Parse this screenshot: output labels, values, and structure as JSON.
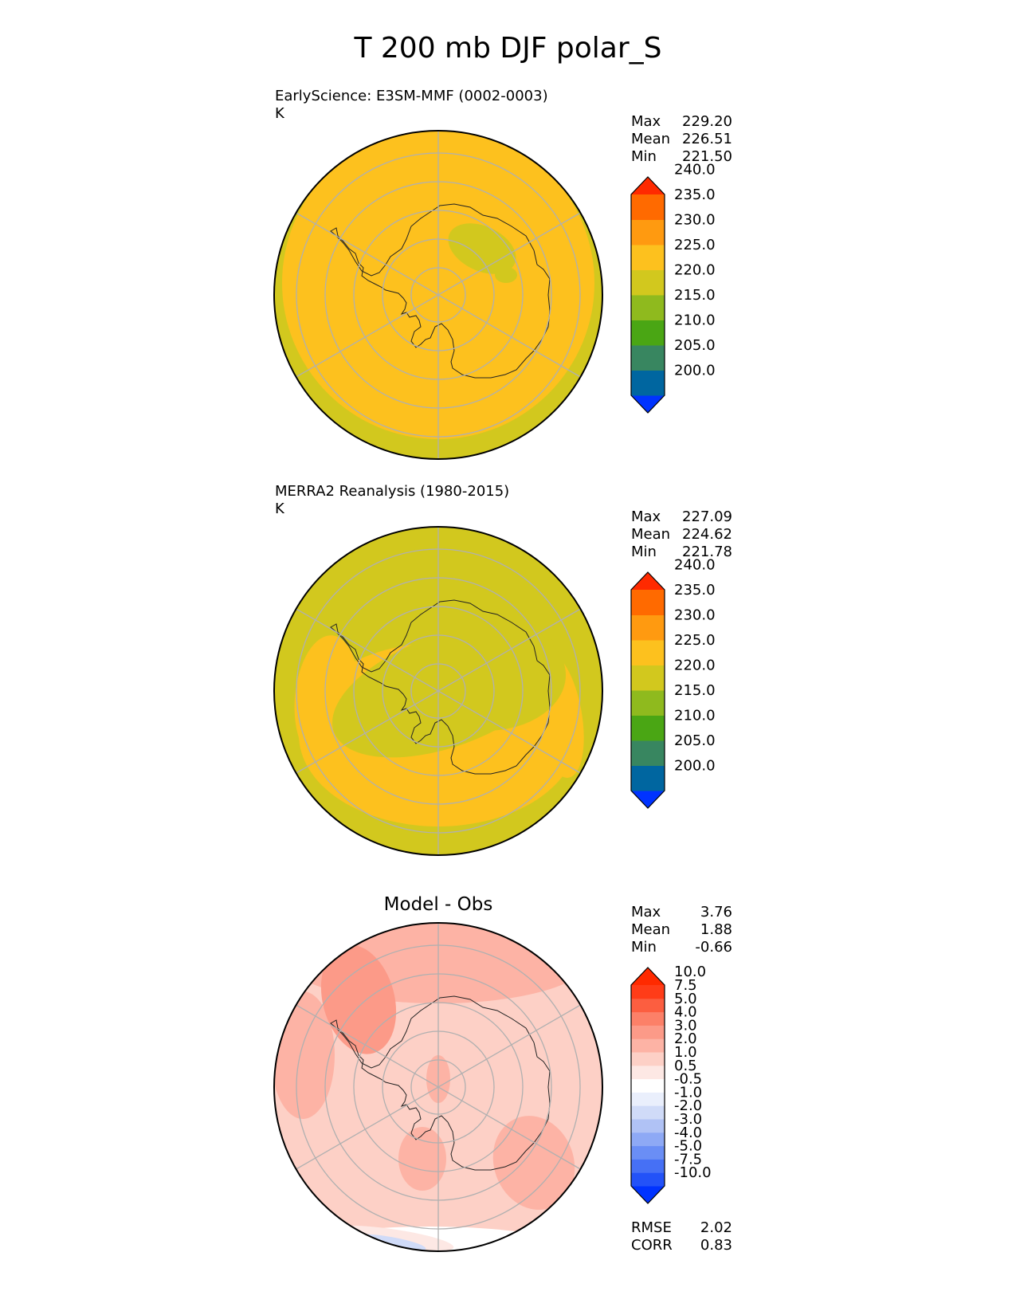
{
  "title": "T 200 mb DJF polar_S",
  "chart_data": [
    {
      "type": "heatmap",
      "projection": "south-polar-stereographic",
      "label": "EarlyScience: E3SM-MMF (0002-0003)",
      "units": "K",
      "stats": [
        {
          "name": "Max",
          "value": "229.20"
        },
        {
          "name": "Mean",
          "value": "226.51"
        },
        {
          "name": "Min",
          "value": "221.50"
        }
      ],
      "colorbar": {
        "levels": [
          "200.0",
          "205.0",
          "210.0",
          "215.0",
          "220.0",
          "225.0",
          "230.0",
          "235.0",
          "240.0"
        ],
        "colors": [
          "#0033ff",
          "#0066a0",
          "#388660",
          "#4aa614",
          "#8fba1e",
          "#d2c81e",
          "#fdc11e",
          "#ff9a10",
          "#ff6a00",
          "#ff2a00"
        ]
      }
    },
    {
      "type": "heatmap",
      "projection": "south-polar-stereographic",
      "label": "MERRA2 Reanalysis (1980-2015)",
      "units": "K",
      "stats": [
        {
          "name": "Max",
          "value": "227.09"
        },
        {
          "name": "Mean",
          "value": "224.62"
        },
        {
          "name": "Min",
          "value": "221.78"
        }
      ],
      "colorbar": {
        "levels": [
          "200.0",
          "205.0",
          "210.0",
          "215.0",
          "220.0",
          "225.0",
          "230.0",
          "235.0",
          "240.0"
        ],
        "colors": [
          "#0033ff",
          "#0066a0",
          "#388660",
          "#4aa614",
          "#8fba1e",
          "#d2c81e",
          "#fdc11e",
          "#ff9a10",
          "#ff6a00",
          "#ff2a00"
        ]
      }
    },
    {
      "type": "heatmap",
      "projection": "south-polar-stereographic",
      "title": "Model - Obs",
      "stats": [
        {
          "name": "Max",
          "value": "3.76"
        },
        {
          "name": "Mean",
          "value": "1.88"
        },
        {
          "name": "Min",
          "value": "-0.66"
        }
      ],
      "extra_stats": [
        {
          "name": "RMSE",
          "value": "2.02"
        },
        {
          "name": "CORR",
          "value": "0.83"
        }
      ],
      "colorbar": {
        "levels": [
          "-10.0",
          "-7.5",
          "-5.0",
          "-4.0",
          "-3.0",
          "-2.0",
          "-1.0",
          "-0.5",
          "0.5",
          "1.0",
          "2.0",
          "3.0",
          "4.0",
          "5.0",
          "7.5",
          "10.0"
        ],
        "colors": [
          "#0033ff",
          "#2352f8",
          "#4670f5",
          "#6a8ef5",
          "#8ea9f5",
          "#b0c2f5",
          "#d0dbf8",
          "#eaeffc",
          "#ffffff",
          "#fde8e4",
          "#fdd0c6",
          "#fdb3a5",
          "#fc9a88",
          "#fc8068",
          "#fc5e40",
          "#ff3c18",
          "#ff2a00"
        ]
      }
    }
  ]
}
